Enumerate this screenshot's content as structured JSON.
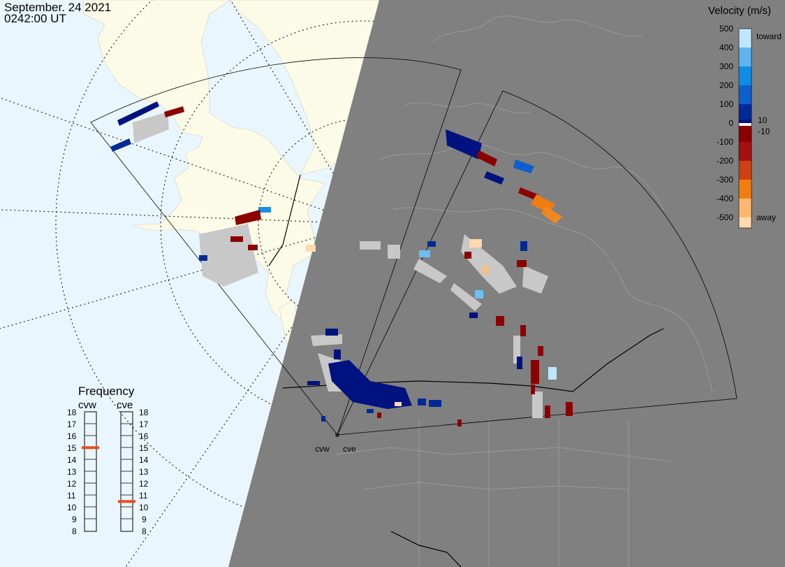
{
  "header": {
    "date": "September. 24 2021",
    "time": "0242:00 UT"
  },
  "velocity_scale": {
    "title": "Velocity (m/s)",
    "ticks": [
      "500",
      "400",
      "300",
      "200",
      "100",
      "0",
      "-100",
      "-200",
      "-300",
      "-400",
      "-500"
    ],
    "toward_label": "toward",
    "away_label": "away",
    "positive_threshold": "10",
    "negative_threshold": "-10",
    "colors": {
      "toward_high": "#bfe6ff",
      "toward_mid": "#0d8de6",
      "toward_low": "#00127f",
      "zero": "#ffffff",
      "away_low": "#8c0000",
      "away_mid": "#e06010",
      "away_high": "#ffd9b0"
    }
  },
  "frequency": {
    "title": "Frequency",
    "radars": [
      {
        "label": "cvw",
        "value": 15,
        "indicator_color": "#e05020"
      },
      {
        "label": "cve",
        "value": 10.5,
        "indicator_color": "#e05020"
      }
    ],
    "scale_numbers": [
      "18",
      "17",
      "16",
      "15",
      "14",
      "13",
      "12",
      "11",
      "10",
      "9",
      "8"
    ]
  },
  "radar_sites": {
    "cvw": "cvw",
    "cve": "cve"
  },
  "colors": {
    "ocean": "#eaf6fd",
    "land": "#fcfbe8",
    "night_shade": "#808080",
    "ground_scatter": "#c8c8c8"
  }
}
